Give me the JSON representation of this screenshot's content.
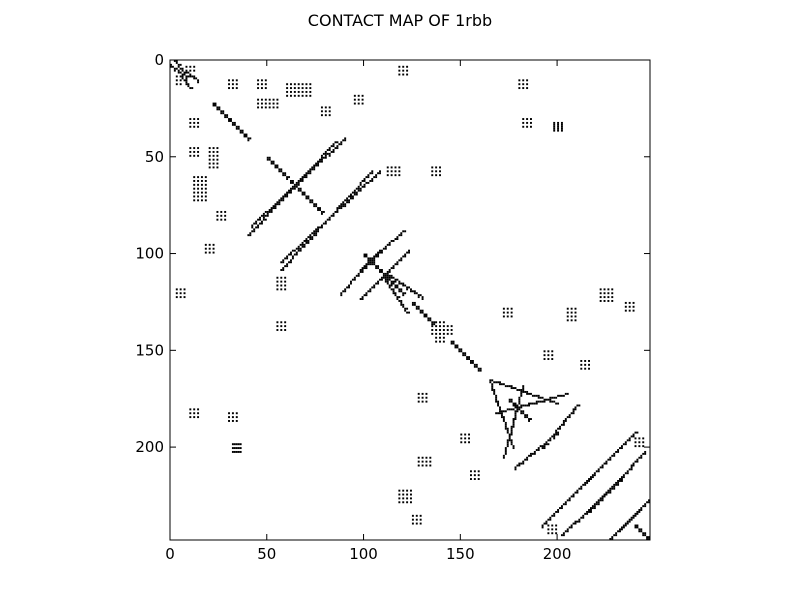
{
  "chart_data": {
    "type": "heatmap",
    "title": "CONTACT MAP OF 1rbb",
    "xlabel": "",
    "ylabel": "",
    "matrix_size": 248,
    "xlim": [
      0,
      248
    ],
    "ylim": [
      248,
      0
    ],
    "x_ticks": [
      "0",
      "50",
      "100",
      "150",
      "200"
    ],
    "y_ticks": [
      "0",
      "50",
      "100",
      "150",
      "200"
    ],
    "grid": false,
    "colors": {
      "contact": "#000000",
      "background": "#ffffff"
    },
    "diagonal_segments": [
      [
        2,
        8,
        0,
        8
      ],
      [
        5,
        10,
        8,
        14
      ],
      [
        22,
        40,
        22,
        40
      ],
      [
        50,
        60,
        50,
        60
      ],
      [
        62,
        78,
        62,
        78
      ],
      [
        100,
        120,
        100,
        120
      ],
      [
        125,
        136,
        125,
        136
      ],
      [
        145,
        160,
        145,
        160
      ],
      [
        175,
        185,
        175,
        185
      ],
      [
        240,
        248,
        240,
        248
      ]
    ],
    "anti_diagonal_segments": [
      [
        40,
        85,
        90,
        42
      ],
      [
        57,
        108,
        104,
        57
      ],
      [
        98,
        120,
        108,
        88
      ],
      [
        110,
        122,
        112,
        130
      ],
      [
        165,
        200,
        165,
        177
      ],
      [
        168,
        205,
        182,
        172
      ],
      [
        192,
        210,
        200,
        178
      ],
      [
        214,
        240,
        218,
        192
      ],
      [
        216,
        245,
        233,
        202
      ],
      [
        232,
        248,
        242,
        226
      ],
      [
        100,
        123,
        121,
        98
      ]
    ],
    "off_diagonal_blocks": [
      [
        8,
        12,
        3,
        5
      ],
      [
        12,
        18,
        60,
        72
      ],
      [
        20,
        24,
        45,
        55
      ],
      [
        30,
        34,
        10,
        14
      ],
      [
        33,
        36,
        198,
        202
      ],
      [
        45,
        50,
        10,
        15
      ],
      [
        55,
        60,
        135,
        140
      ],
      [
        78,
        82,
        24,
        28
      ],
      [
        95,
        100,
        18,
        22
      ],
      [
        112,
        118,
        55,
        60
      ],
      [
        118,
        122,
        3,
        7
      ],
      [
        128,
        133,
        172,
        177
      ],
      [
        135,
        145,
        137,
        142
      ],
      [
        150,
        155,
        193,
        198
      ],
      [
        155,
        160,
        212,
        216
      ],
      [
        180,
        184,
        10,
        14
      ],
      [
        182,
        186,
        30,
        34
      ],
      [
        198,
        202,
        32,
        36
      ],
      [
        205,
        210,
        128,
        134
      ],
      [
        222,
        228,
        118,
        124
      ],
      [
        235,
        240,
        125,
        130
      ],
      [
        240,
        244,
        195,
        200
      ]
    ]
  }
}
